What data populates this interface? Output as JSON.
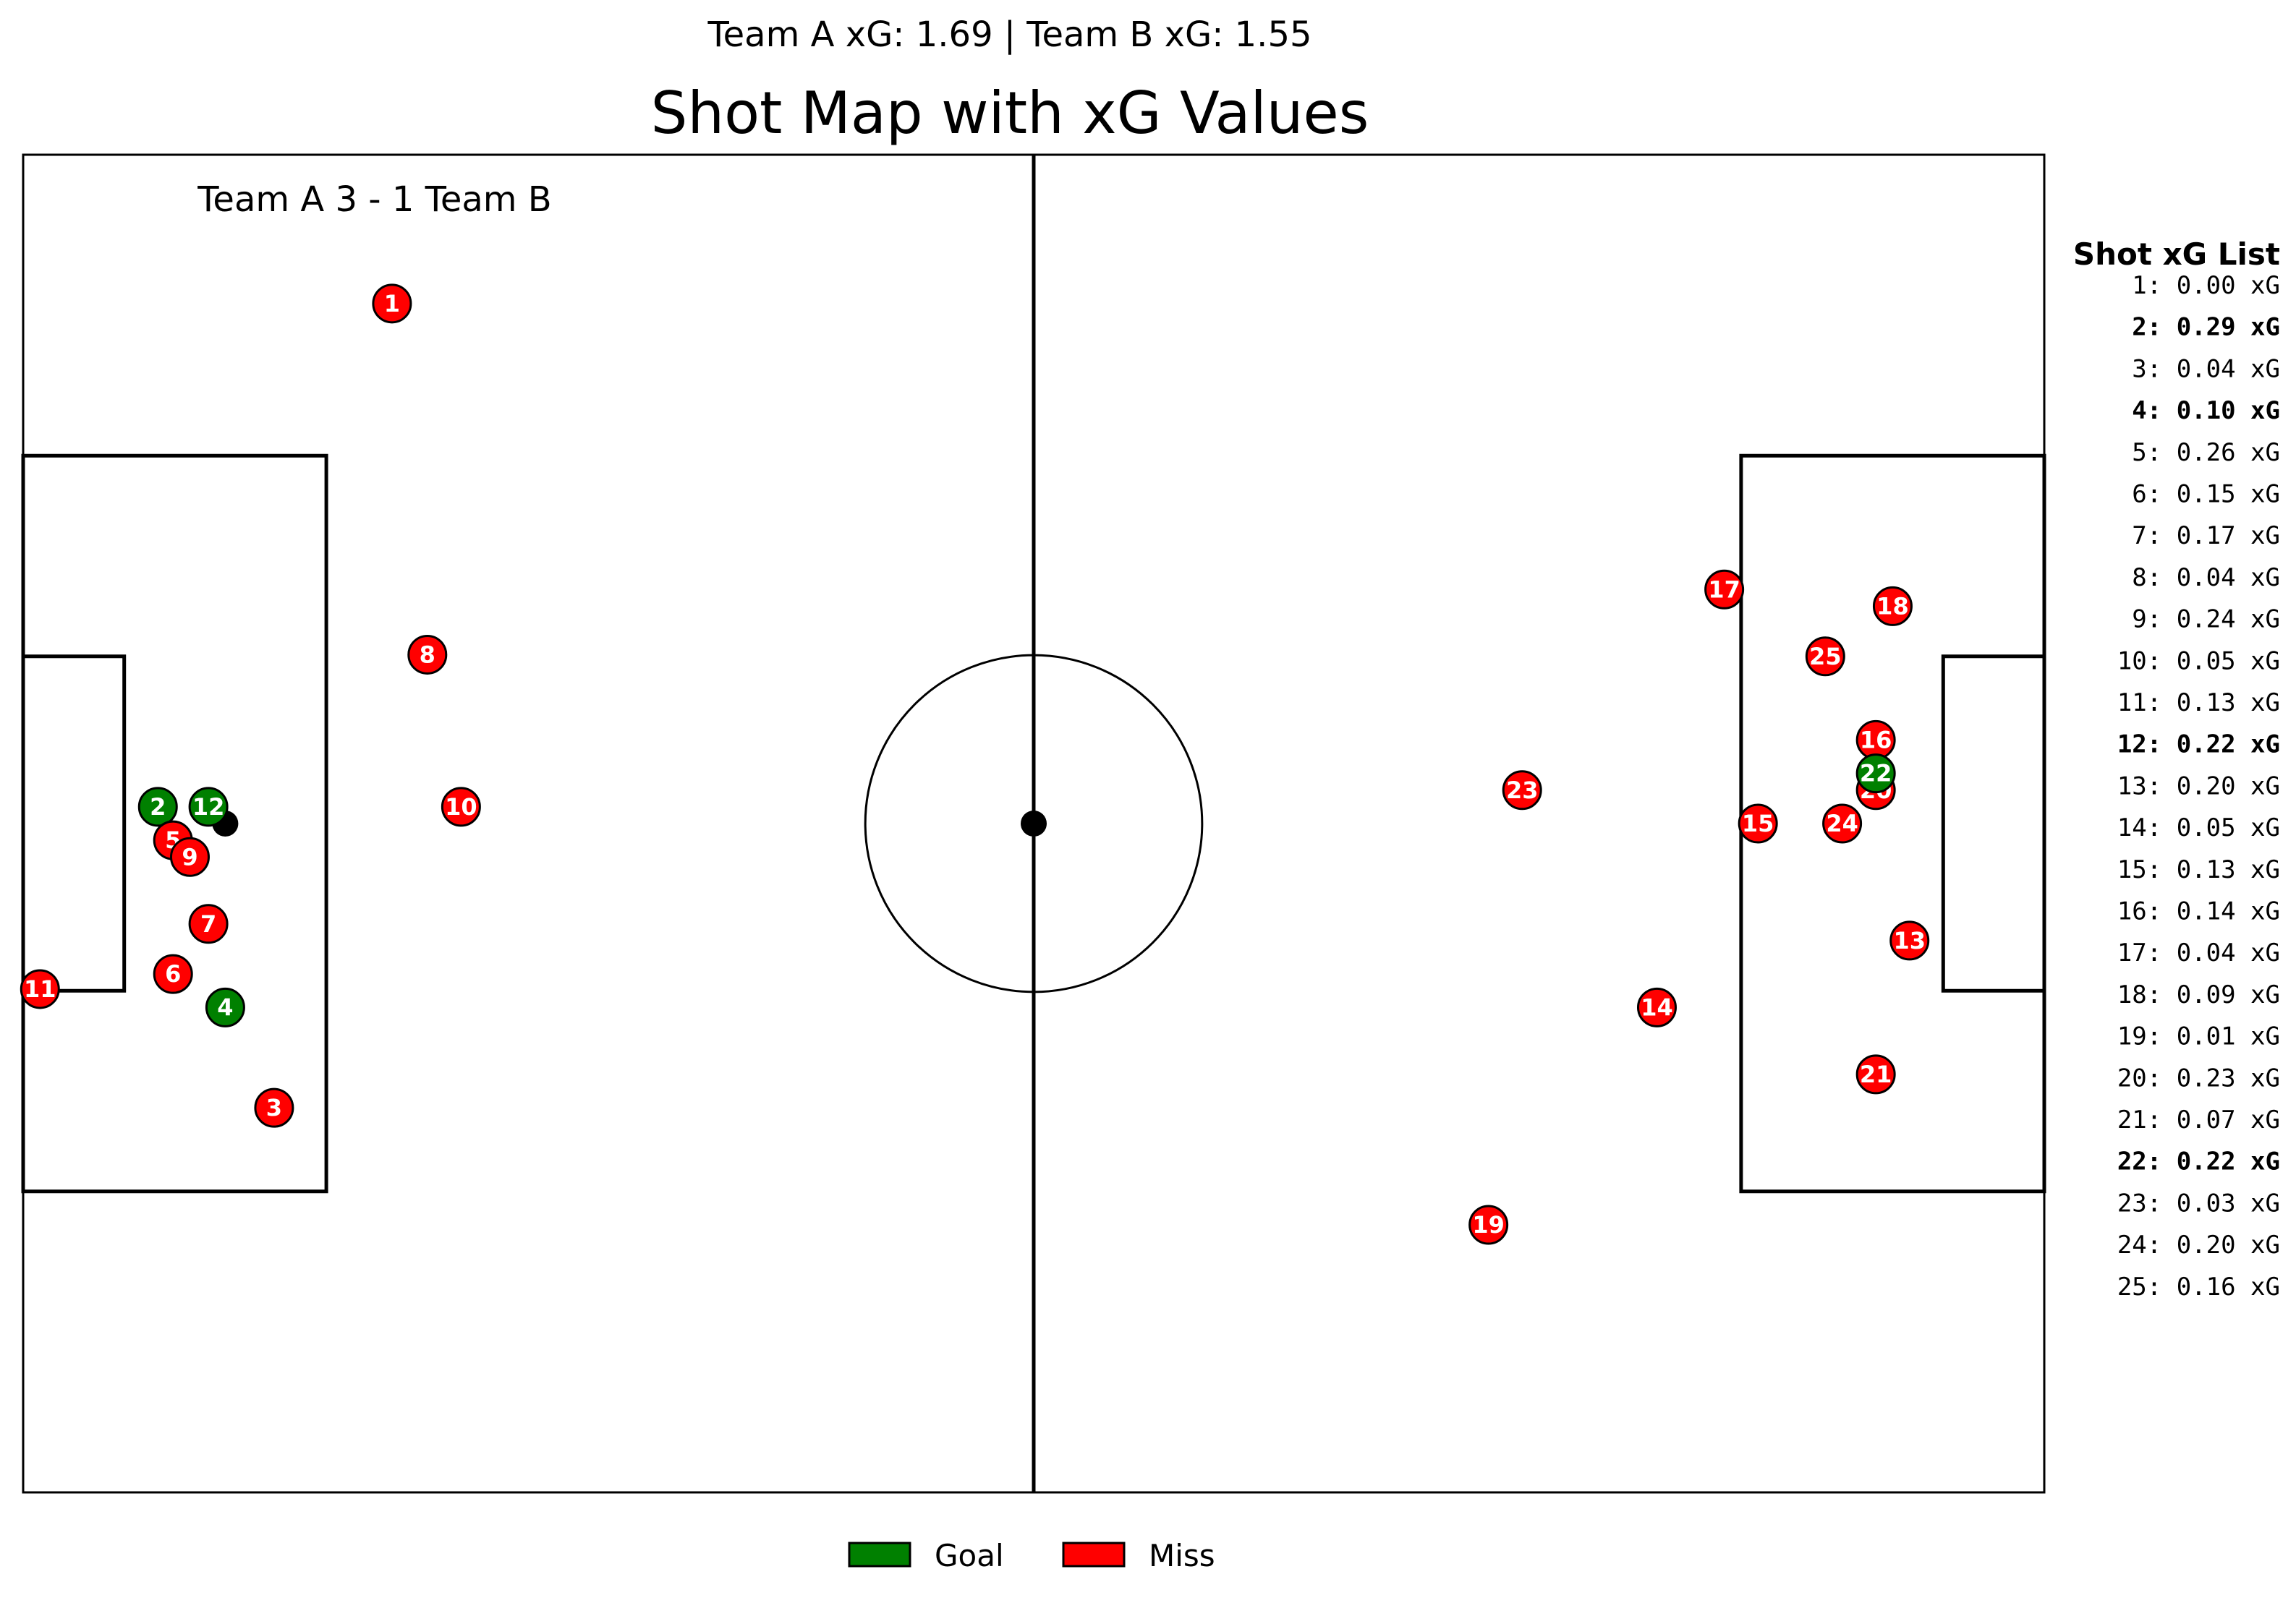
{
  "chart_data": {
    "type": "scatter",
    "subtitle": "Team A xG: 1.69  |  Team B xG: 1.55",
    "title": "Shot Map with xG Values",
    "score": "Team A 3 - 1 Team B",
    "list_title": "Shot xG List",
    "legend": [
      {
        "label": "Goal",
        "color": "#008000"
      },
      {
        "label": "Miss",
        "color": "#ff0000"
      }
    ],
    "pitch": {
      "xlim": [
        0,
        120
      ],
      "ylim": [
        0,
        80
      ]
    },
    "shots": [
      {
        "id": "1",
        "x": 21.9,
        "y": 71.1,
        "xg": "0.00",
        "outcome": "Miss"
      },
      {
        "id": "2",
        "x": 8.0,
        "y": 41.0,
        "xg": "0.29",
        "outcome": "Goal"
      },
      {
        "id": "3",
        "x": 14.9,
        "y": 23.0,
        "xg": "0.04",
        "outcome": "Miss"
      },
      {
        "id": "4",
        "x": 12.0,
        "y": 29.0,
        "xg": "0.10",
        "outcome": "Goal"
      },
      {
        "id": "5",
        "x": 8.9,
        "y": 39.0,
        "xg": "0.26",
        "outcome": "Miss"
      },
      {
        "id": "6",
        "x": 8.9,
        "y": 31.0,
        "xg": "0.15",
        "outcome": "Miss"
      },
      {
        "id": "7",
        "x": 11.0,
        "y": 34.0,
        "xg": "0.17",
        "outcome": "Miss"
      },
      {
        "id": "8",
        "x": 24.0,
        "y": 50.1,
        "xg": "0.04",
        "outcome": "Miss"
      },
      {
        "id": "9",
        "x": 9.9,
        "y": 38.0,
        "xg": "0.24",
        "outcome": "Miss"
      },
      {
        "id": "10",
        "x": 26.0,
        "y": 41.0,
        "xg": "0.05",
        "outcome": "Miss"
      },
      {
        "id": "11",
        "x": 1.0,
        "y": 30.1,
        "xg": "0.13",
        "outcome": "Miss"
      },
      {
        "id": "12",
        "x": 11.0,
        "y": 41.0,
        "xg": "0.22",
        "outcome": "Goal"
      },
      {
        "id": "13",
        "x": 112.0,
        "y": 33.0,
        "xg": "0.20",
        "outcome": "Miss"
      },
      {
        "id": "14",
        "x": 97.0,
        "y": 29.0,
        "xg": "0.05",
        "outcome": "Miss"
      },
      {
        "id": "15",
        "x": 103.0,
        "y": 40.0,
        "xg": "0.13",
        "outcome": "Miss"
      },
      {
        "id": "16",
        "x": 110.0,
        "y": 45.0,
        "xg": "0.14",
        "outcome": "Miss"
      },
      {
        "id": "17",
        "x": 101.0,
        "y": 54.0,
        "xg": "0.04",
        "outcome": "Miss"
      },
      {
        "id": "18",
        "x": 111.0,
        "y": 53.0,
        "xg": "0.09",
        "outcome": "Miss"
      },
      {
        "id": "19",
        "x": 87.0,
        "y": 16.0,
        "xg": "0.01",
        "outcome": "Miss"
      },
      {
        "id": "20",
        "x": 110.0,
        "y": 42.0,
        "xg": "0.23",
        "outcome": "Miss"
      },
      {
        "id": "21",
        "x": 110.0,
        "y": 25.0,
        "xg": "0.07",
        "outcome": "Miss"
      },
      {
        "id": "22",
        "x": 110.0,
        "y": 43.0,
        "xg": "0.22",
        "outcome": "Goal"
      },
      {
        "id": "23",
        "x": 89.0,
        "y": 42.0,
        "xg": "0.03",
        "outcome": "Miss"
      },
      {
        "id": "24",
        "x": 108.0,
        "y": 40.0,
        "xg": "0.20",
        "outcome": "Miss"
      },
      {
        "id": "25",
        "x": 107.0,
        "y": 50.0,
        "xg": "0.16",
        "outcome": "Miss"
      }
    ]
  }
}
